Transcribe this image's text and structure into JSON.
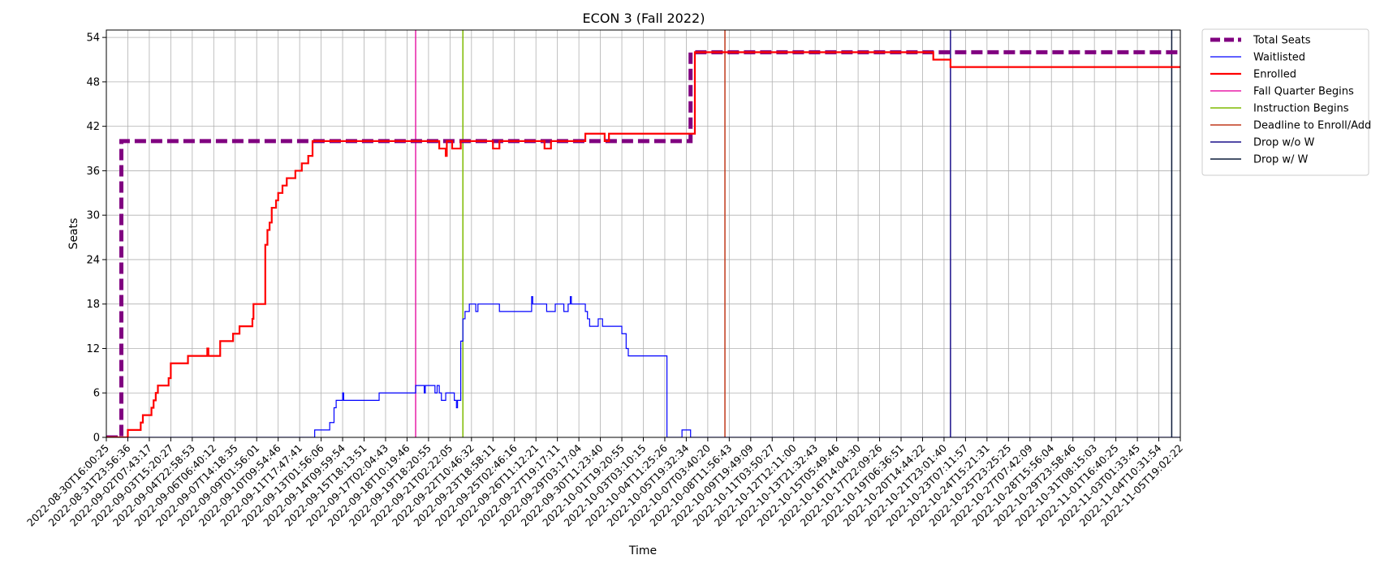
{
  "chart_data": {
    "type": "line",
    "title": "ECON 3 (Fall 2022)",
    "xlabel": "Time",
    "ylabel": "Seats",
    "ylim": [
      0,
      55
    ],
    "yticks": [
      0,
      6,
      12,
      18,
      24,
      30,
      36,
      42,
      48,
      54
    ],
    "grid": true,
    "legend_position": "outside-right",
    "xticks": [
      "2022-08-30T16:00:25",
      "2022-08-31T23:56:36",
      "2022-09-02T07:43:17",
      "2022-09-03T15:20:27",
      "2022-09-04T22:58:53",
      "2022-09-06T06:40:12",
      "2022-09-07T14:18:35",
      "2022-09-09T01:56:01",
      "2022-09-10T09:54:46",
      "2022-09-11T17:47:41",
      "2022-09-13T01:56:06",
      "2022-09-14T09:59:54",
      "2022-09-15T18:13:51",
      "2022-09-17T02:04:43",
      "2022-09-18T10:19:46",
      "2022-09-19T18:20:55",
      "2022-09-21T02:22:05",
      "2022-09-22T10:46:32",
      "2022-09-23T18:58:11",
      "2022-09-25T02:46:16",
      "2022-09-26T11:12:21",
      "2022-09-27T19:17:11",
      "2022-09-29T03:17:04",
      "2022-09-30T11:23:40",
      "2022-10-01T19:20:55",
      "2022-10-03T03:10:15",
      "2022-10-04T11:25:26",
      "2022-10-05T19:32:34",
      "2022-10-07T03:40:20",
      "2022-10-08T11:56:43",
      "2022-10-09T19:49:09",
      "2022-10-11T03:50:27",
      "2022-10-12T12:11:00",
      "2022-10-13T21:32:43",
      "2022-10-15T05:49:46",
      "2022-10-16T14:04:30",
      "2022-10-17T22:09:26",
      "2022-10-19T06:36:51",
      "2022-10-20T14:44:22",
      "2022-10-21T23:01:40",
      "2022-10-23T07:11:57",
      "2022-10-24T15:21:31",
      "2022-10-25T23:25:25",
      "2022-10-27T07:42:09",
      "2022-10-28T15:56:04",
      "2022-10-29T23:58:46",
      "2022-10-31T08:15:03",
      "2022-11-01T16:40:25",
      "2022-11-03T01:33:45",
      "2022-11-04T10:31:54",
      "2022-11-05T19:02:22"
    ],
    "series": [
      {
        "name": "Total Seats",
        "color": "#800080",
        "style": "dashed",
        "width": 5,
        "points": [
          [
            0,
            0
          ],
          [
            0.7,
            0
          ],
          [
            0.7,
            40
          ],
          [
            27.2,
            40
          ],
          [
            27.2,
            52
          ],
          [
            50,
            52
          ]
        ]
      },
      {
        "name": "Waitlisted",
        "color": "#0000ff",
        "style": "solid",
        "width": 1.2,
        "points": [
          [
            0,
            0
          ],
          [
            9.7,
            0
          ],
          [
            9.7,
            1
          ],
          [
            10.4,
            1
          ],
          [
            10.4,
            2
          ],
          [
            10.6,
            2
          ],
          [
            10.6,
            4
          ],
          [
            10.7,
            4
          ],
          [
            10.7,
            5
          ],
          [
            11.0,
            5
          ],
          [
            11.0,
            6
          ],
          [
            11.05,
            6
          ],
          [
            11.05,
            5
          ],
          [
            12.7,
            5
          ],
          [
            12.7,
            6
          ],
          [
            14.4,
            6
          ],
          [
            14.4,
            7
          ],
          [
            14.8,
            7
          ],
          [
            14.8,
            6
          ],
          [
            14.85,
            6
          ],
          [
            14.85,
            7
          ],
          [
            15.3,
            7
          ],
          [
            15.3,
            6
          ],
          [
            15.4,
            6
          ],
          [
            15.4,
            7
          ],
          [
            15.5,
            7
          ],
          [
            15.5,
            6
          ],
          [
            15.6,
            6
          ],
          [
            15.6,
            5
          ],
          [
            15.8,
            5
          ],
          [
            15.8,
            6
          ],
          [
            16.2,
            6
          ],
          [
            16.2,
            5
          ],
          [
            16.3,
            5
          ],
          [
            16.3,
            4
          ],
          [
            16.35,
            4
          ],
          [
            16.35,
            5
          ],
          [
            16.5,
            5
          ],
          [
            16.5,
            13
          ],
          [
            16.6,
            13
          ],
          [
            16.6,
            16
          ],
          [
            16.7,
            16
          ],
          [
            16.7,
            17
          ],
          [
            16.9,
            17
          ],
          [
            16.9,
            18
          ],
          [
            17.2,
            18
          ],
          [
            17.2,
            17
          ],
          [
            17.3,
            17
          ],
          [
            17.3,
            18
          ],
          [
            18.3,
            18
          ],
          [
            18.3,
            17
          ],
          [
            19.8,
            17
          ],
          [
            19.8,
            19
          ],
          [
            19.85,
            19
          ],
          [
            19.85,
            18
          ],
          [
            20.5,
            18
          ],
          [
            20.5,
            17
          ],
          [
            20.9,
            17
          ],
          [
            20.9,
            18
          ],
          [
            21.3,
            18
          ],
          [
            21.3,
            17
          ],
          [
            21.5,
            17
          ],
          [
            21.5,
            18
          ],
          [
            21.6,
            18
          ],
          [
            21.6,
            19
          ],
          [
            21.65,
            19
          ],
          [
            21.65,
            18
          ],
          [
            22.3,
            18
          ],
          [
            22.3,
            17
          ],
          [
            22.4,
            17
          ],
          [
            22.4,
            16
          ],
          [
            22.5,
            16
          ],
          [
            22.5,
            15
          ],
          [
            22.9,
            15
          ],
          [
            22.9,
            16
          ],
          [
            23.1,
            16
          ],
          [
            23.1,
            15
          ],
          [
            24.0,
            15
          ],
          [
            24.0,
            14
          ],
          [
            24.2,
            14
          ],
          [
            24.2,
            12
          ],
          [
            24.3,
            12
          ],
          [
            24.3,
            11
          ],
          [
            26.1,
            11
          ],
          [
            26.1,
            0
          ],
          [
            26.8,
            0
          ],
          [
            26.8,
            1
          ],
          [
            27.2,
            1
          ],
          [
            27.2,
            0
          ],
          [
            50,
            0
          ]
        ]
      },
      {
        "name": "Enrolled",
        "color": "#ff0000",
        "style": "solid",
        "width": 2.2,
        "points": [
          [
            0,
            0
          ],
          [
            1.0,
            0
          ],
          [
            1.0,
            1
          ],
          [
            1.6,
            1
          ],
          [
            1.6,
            2
          ],
          [
            1.7,
            2
          ],
          [
            1.7,
            3
          ],
          [
            2.1,
            3
          ],
          [
            2.1,
            4
          ],
          [
            2.2,
            4
          ],
          [
            2.2,
            5
          ],
          [
            2.3,
            5
          ],
          [
            2.3,
            6
          ],
          [
            2.4,
            6
          ],
          [
            2.4,
            7
          ],
          [
            2.9,
            7
          ],
          [
            2.9,
            8
          ],
          [
            3.0,
            8
          ],
          [
            3.0,
            10
          ],
          [
            3.8,
            10
          ],
          [
            3.8,
            11
          ],
          [
            4.7,
            11
          ],
          [
            4.7,
            12
          ],
          [
            4.75,
            12
          ],
          [
            4.75,
            11
          ],
          [
            5.3,
            11
          ],
          [
            5.3,
            13
          ],
          [
            5.9,
            13
          ],
          [
            5.9,
            14
          ],
          [
            6.2,
            14
          ],
          [
            6.2,
            15
          ],
          [
            6.8,
            15
          ],
          [
            6.8,
            16
          ],
          [
            6.85,
            16
          ],
          [
            6.85,
            18
          ],
          [
            7.4,
            18
          ],
          [
            7.4,
            26
          ],
          [
            7.5,
            26
          ],
          [
            7.5,
            28
          ],
          [
            7.6,
            28
          ],
          [
            7.6,
            29
          ],
          [
            7.7,
            29
          ],
          [
            7.7,
            31
          ],
          [
            7.9,
            31
          ],
          [
            7.9,
            32
          ],
          [
            8.0,
            32
          ],
          [
            8.0,
            33
          ],
          [
            8.2,
            33
          ],
          [
            8.2,
            34
          ],
          [
            8.4,
            34
          ],
          [
            8.4,
            35
          ],
          [
            8.8,
            35
          ],
          [
            8.8,
            36
          ],
          [
            9.1,
            36
          ],
          [
            9.1,
            37
          ],
          [
            9.4,
            37
          ],
          [
            9.4,
            38
          ],
          [
            9.6,
            38
          ],
          [
            9.6,
            40
          ],
          [
            15.5,
            40
          ],
          [
            15.5,
            39
          ],
          [
            15.8,
            39
          ],
          [
            15.8,
            38
          ],
          [
            15.85,
            38
          ],
          [
            15.85,
            40
          ],
          [
            16.1,
            40
          ],
          [
            16.1,
            39
          ],
          [
            16.5,
            39
          ],
          [
            16.5,
            40
          ],
          [
            18.0,
            40
          ],
          [
            18.0,
            39
          ],
          [
            18.3,
            39
          ],
          [
            18.3,
            40
          ],
          [
            20.4,
            40
          ],
          [
            20.4,
            39
          ],
          [
            20.7,
            39
          ],
          [
            20.7,
            40
          ],
          [
            22.3,
            40
          ],
          [
            22.3,
            41
          ],
          [
            23.2,
            41
          ],
          [
            23.2,
            40
          ],
          [
            23.4,
            40
          ],
          [
            23.4,
            41
          ],
          [
            27.4,
            41
          ],
          [
            27.4,
            52
          ],
          [
            38.5,
            52
          ],
          [
            38.5,
            51
          ],
          [
            39.3,
            51
          ],
          [
            39.3,
            50
          ],
          [
            50,
            50
          ]
        ]
      },
      {
        "name": "Fall Quarter Begins",
        "color": "#e81fa8",
        "style": "solid",
        "width": 1.5,
        "vline": 14.4
      },
      {
        "name": "Instruction Begins",
        "color": "#7fba00",
        "style": "solid",
        "width": 1.5,
        "vline": 16.6
      },
      {
        "name": "Deadline to Enroll/Add",
        "color": "#c0391b",
        "style": "solid",
        "width": 1.5,
        "vline": 28.8
      },
      {
        "name": "Drop w/o W",
        "color": "#1a0f8a",
        "style": "solid",
        "width": 1.5,
        "vline": 39.3
      },
      {
        "name": "Drop w/ W",
        "color": "#0c1b3a",
        "style": "solid",
        "width": 1.5,
        "vline": 49.6
      }
    ]
  }
}
